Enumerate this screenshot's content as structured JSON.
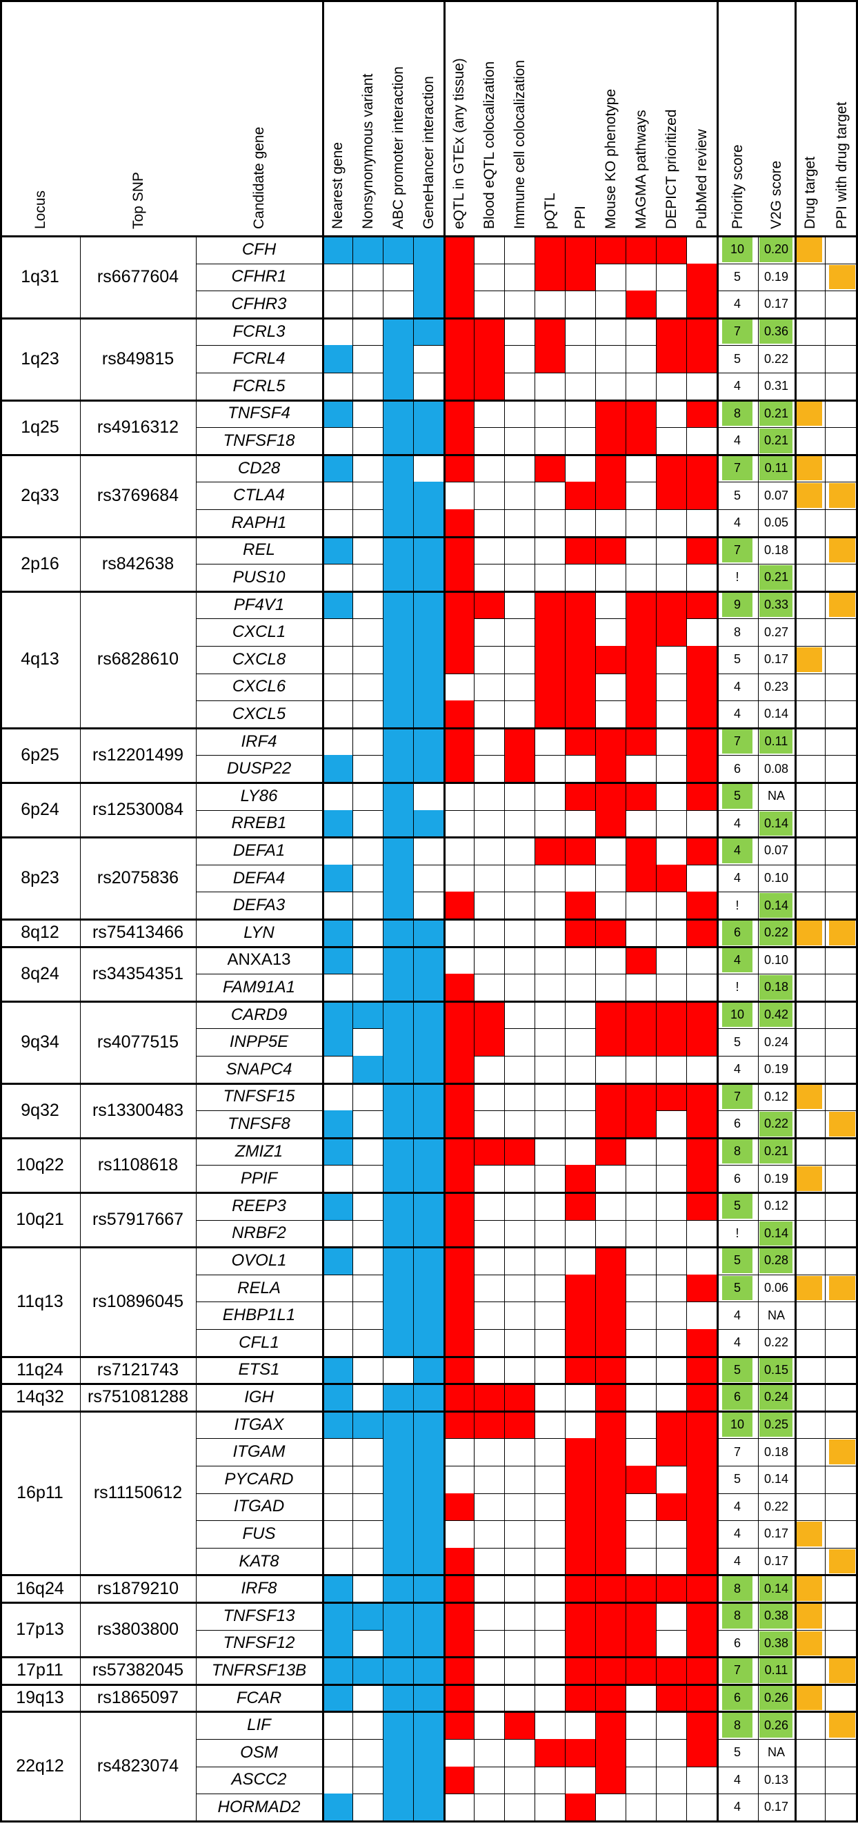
{
  "headers": {
    "locus": "Locus",
    "top_snp": "Top SNP",
    "candidate_gene": "Candidate gene",
    "evidence": [
      "Nearest gene",
      "Nonsynonymous variant",
      "ABC promoter interaction",
      "GeneHancer interaction",
      "eQTL in GTEx (any tissue)",
      "Blood eQTL colocalization",
      "Immune cell colocalization",
      "pQTL",
      "PPI",
      "Mouse KO phenotype",
      "MAGMA pathways",
      "DEPICT prioritized",
      "PubMed review"
    ],
    "priority_score": "Priority score",
    "v2g_score": "V2G score",
    "drug_target": "Drug target",
    "ppi_drug_target": "PPI with drug target"
  },
  "colors": {
    "blue": "#1aa6e6",
    "red": "#ff0000",
    "green": "#8ccf4d",
    "yellow": "#f7b21a"
  },
  "legend_codes": "Evidence strings: columns 1-4 blue (b) / 5-13 red (r); '.' = no evidence",
  "loci": [
    {
      "locus": "1q31",
      "snp": "rs6677604",
      "genes": [
        {
          "gene": "CFH",
          "ev": "bbbbr..rrrrr.",
          "p": "10",
          "pg": true,
          "v": "0.20",
          "vg": true,
          "dt": true,
          "pd": false
        },
        {
          "gene": "CFHR1",
          "ev": "...br..rr...r",
          "p": "5",
          "pg": false,
          "v": "0.19",
          "vg": false,
          "dt": false,
          "pd": true
        },
        {
          "gene": "CFHR3",
          "ev": "...br.....r.r",
          "p": "4",
          "pg": false,
          "v": "0.17",
          "vg": false,
          "dt": false,
          "pd": false
        }
      ]
    },
    {
      "locus": "1q23",
      "snp": "rs849815",
      "genes": [
        {
          "gene": "FCRL3",
          "ev": "..bbrr.r...rr",
          "p": "7",
          "pg": true,
          "v": "0.36",
          "vg": true,
          "dt": false,
          "pd": false
        },
        {
          "gene": "FCRL4",
          "ev": "b.b.rr.r...rr",
          "p": "5",
          "pg": false,
          "v": "0.22",
          "vg": false,
          "dt": false,
          "pd": false
        },
        {
          "gene": "FCRL5",
          "ev": "..b.rr.......",
          "p": "4",
          "pg": false,
          "v": "0.31",
          "vg": false,
          "dt": false,
          "pd": false
        }
      ]
    },
    {
      "locus": "1q25",
      "snp": "rs4916312",
      "genes": [
        {
          "gene": "TNFSF4",
          "ev": "b.bbr....rr.r",
          "p": "8",
          "pg": true,
          "v": "0.21",
          "vg": true,
          "dt": true,
          "pd": false
        },
        {
          "gene": "TNFSF18",
          "ev": "..bbr....rr..",
          "p": "4",
          "pg": false,
          "v": "0.21",
          "vg": true,
          "dt": false,
          "pd": false
        }
      ]
    },
    {
      "locus": "2q33",
      "snp": "rs3769684",
      "genes": [
        {
          "gene": "CD28",
          "ev": "b.b.r..r.r.rr",
          "p": "7",
          "pg": true,
          "v": "0.11",
          "vg": true,
          "dt": true,
          "pd": false
        },
        {
          "gene": "CTLA4",
          "ev": "..bb....rr.rr",
          "p": "5",
          "pg": false,
          "v": "0.07",
          "vg": false,
          "dt": true,
          "pd": true
        },
        {
          "gene": "RAPH1",
          "ev": "..bbr........",
          "p": "4",
          "pg": false,
          "v": "0.05",
          "vg": false,
          "dt": false,
          "pd": false
        }
      ]
    },
    {
      "locus": "2p16",
      "snp": "rs842638",
      "genes": [
        {
          "gene": "REL",
          "ev": "b.bbr...rr..r",
          "p": "7",
          "pg": true,
          "v": "0.18",
          "vg": false,
          "dt": false,
          "pd": true
        },
        {
          "gene": "PUS10",
          "ev": "..bbr........",
          "p": "!",
          "pg": false,
          "v": "0.21",
          "vg": true,
          "dt": false,
          "pd": false
        }
      ]
    },
    {
      "locus": "4q13",
      "snp": "rs6828610",
      "genes": [
        {
          "gene": "PF4V1",
          "ev": "b.bbrr.rr.rrr",
          "p": "9",
          "pg": true,
          "v": "0.33",
          "vg": true,
          "dt": false,
          "pd": true
        },
        {
          "gene": "CXCL1",
          "ev": "..bbr..rr.rr.",
          "p": "8",
          "pg": false,
          "v": "0.27",
          "vg": false,
          "dt": false,
          "pd": false
        },
        {
          "gene": "CXCL8",
          "ev": "..bbr..rrrr.r",
          "p": "5",
          "pg": false,
          "v": "0.17",
          "vg": false,
          "dt": true,
          "pd": false
        },
        {
          "gene": "CXCL6",
          "ev": "..bb...rr.r.r",
          "p": "4",
          "pg": false,
          "v": "0.23",
          "vg": false,
          "dt": false,
          "pd": false
        },
        {
          "gene": "CXCL5",
          "ev": "..bbr..rr.r.r",
          "p": "4",
          "pg": false,
          "v": "0.14",
          "vg": false,
          "dt": false,
          "pd": false
        }
      ]
    },
    {
      "locus": "6p25",
      "snp": "rs12201499",
      "genes": [
        {
          "gene": "IRF4",
          "ev": "..bbr.r.rrr.r",
          "p": "7",
          "pg": true,
          "v": "0.11",
          "vg": true,
          "dt": false,
          "pd": false
        },
        {
          "gene": "DUSP22",
          "ev": "b.bbr.r..r..r",
          "p": "6",
          "pg": false,
          "v": "0.08",
          "vg": false,
          "dt": false,
          "pd": false
        }
      ]
    },
    {
      "locus": "6p24",
      "snp": "rs12530084",
      "genes": [
        {
          "gene": "LY86",
          "ev": "..b.....rrr.r",
          "p": "5",
          "pg": true,
          "v": "NA",
          "vg": false,
          "dt": false,
          "pd": false
        },
        {
          "gene": "RREB1",
          "ev": "b.bb.....r...",
          "p": "4",
          "pg": false,
          "v": "0.14",
          "vg": true,
          "dt": false,
          "pd": false
        }
      ]
    },
    {
      "locus": "8p23",
      "snp": "rs2075836",
      "genes": [
        {
          "gene": "DEFA1",
          "ev": "..b....rr.r.r",
          "p": "4",
          "pg": true,
          "v": "0.07",
          "vg": false,
          "dt": false,
          "pd": false
        },
        {
          "gene": "DEFA4",
          "ev": "b.b.......rr.",
          "p": "4",
          "pg": false,
          "v": "0.10",
          "vg": false,
          "dt": false,
          "pd": false
        },
        {
          "gene": "DEFA3",
          "ev": "..b.r...r...r",
          "p": "!",
          "pg": false,
          "v": "0.14",
          "vg": true,
          "dt": false,
          "pd": false
        }
      ]
    },
    {
      "locus": "8q12",
      "snp": "rs75413466",
      "genes": [
        {
          "gene": "LYN",
          "ev": "b.bb....rr..r",
          "p": "6",
          "pg": true,
          "v": "0.22",
          "vg": true,
          "dt": true,
          "pd": true
        }
      ]
    },
    {
      "locus": "8q24",
      "snp": "rs34354351",
      "genes": [
        {
          "gene": "ANXA13",
          "plain": true,
          "ev": "b.bb......r..",
          "p": "4",
          "pg": true,
          "v": "0.10",
          "vg": false,
          "dt": false,
          "pd": false
        },
        {
          "gene": "FAM91A1",
          "ev": "..bbr........",
          "p": "!",
          "pg": false,
          "v": "0.18",
          "vg": true,
          "dt": false,
          "pd": false
        }
      ]
    },
    {
      "locus": "9q34",
      "snp": "rs4077515",
      "genes": [
        {
          "gene": "CARD9",
          "ev": "bbbbrr...rrrr",
          "p": "10",
          "pg": true,
          "v": "0.42",
          "vg": true,
          "dt": false,
          "pd": false
        },
        {
          "gene": "INPP5E",
          "ev": "b.bbrr...rrrr",
          "p": "5",
          "pg": false,
          "v": "0.24",
          "vg": false,
          "dt": false,
          "pd": false
        },
        {
          "gene": "SNAPC4",
          "ev": ".bbbr........",
          "p": "4",
          "pg": false,
          "v": "0.19",
          "vg": false,
          "dt": false,
          "pd": false
        }
      ]
    },
    {
      "locus": "9q32",
      "snp": "rs13300483",
      "genes": [
        {
          "gene": "TNFSF15",
          "ev": "..bbr....rrrr",
          "p": "7",
          "pg": true,
          "v": "0.12",
          "vg": false,
          "dt": true,
          "pd": false
        },
        {
          "gene": "TNFSF8",
          "ev": "b.bbr....rr.r",
          "p": "6",
          "pg": false,
          "v": "0.22",
          "vg": true,
          "dt": false,
          "pd": true
        }
      ]
    },
    {
      "locus": "10q22",
      "snp": "rs1108618",
      "genes": [
        {
          "gene": "ZMIZ1",
          "ev": "b.bbrrr..r..r",
          "p": "8",
          "pg": true,
          "v": "0.21",
          "vg": true,
          "dt": false,
          "pd": false
        },
        {
          "gene": "PPIF",
          "ev": "..bbr...r...r",
          "p": "6",
          "pg": false,
          "v": "0.19",
          "vg": false,
          "dt": true,
          "pd": false
        }
      ]
    },
    {
      "locus": "10q21",
      "snp": "rs57917667",
      "genes": [
        {
          "gene": "REEP3",
          "ev": "b.bbr...r...r",
          "p": "5",
          "pg": true,
          "v": "0.12",
          "vg": false,
          "dt": false,
          "pd": false
        },
        {
          "gene": "NRBF2",
          "ev": "..bbr........",
          "p": "!",
          "pg": false,
          "v": "0.14",
          "vg": true,
          "dt": false,
          "pd": false
        }
      ]
    },
    {
      "locus": "11q13",
      "snp": "rs10896045",
      "genes": [
        {
          "gene": "OVOL1",
          "ev": "b.bbr....r...",
          "p": "5",
          "pg": true,
          "v": "0.28",
          "vg": true,
          "dt": false,
          "pd": false
        },
        {
          "gene": "RELA",
          "ev": "..bbr...rr..r",
          "p": "5",
          "pg": true,
          "v": "0.06",
          "vg": false,
          "dt": true,
          "pd": true
        },
        {
          "gene": "EHBP1L1",
          "ev": "..bbr...rr...",
          "p": "4",
          "pg": false,
          "v": "NA",
          "vg": false,
          "dt": false,
          "pd": false
        },
        {
          "gene": "CFL1",
          "ev": "..bbr...rr..r",
          "p": "4",
          "pg": false,
          "v": "0.22",
          "vg": false,
          "dt": false,
          "pd": false
        }
      ]
    },
    {
      "locus": "11q24",
      "snp": "rs7121743",
      "genes": [
        {
          "gene": "ETS1",
          "ev": "b..br...rr..r",
          "p": "5",
          "pg": true,
          "v": "0.15",
          "vg": true,
          "dt": false,
          "pd": false
        }
      ]
    },
    {
      "locus": "14q32",
      "snp": "rs751081288",
      "genes": [
        {
          "gene": "IGH",
          "ev": "b.bbrrr..r..r",
          "p": "6",
          "pg": true,
          "v": "0.24",
          "vg": true,
          "dt": false,
          "pd": false
        }
      ]
    },
    {
      "locus": "16p11",
      "snp": "rs11150612",
      "genes": [
        {
          "gene": "ITGAX",
          "ev": "bbbbrrr..r.rr",
          "p": "10",
          "pg": true,
          "v": "0.25",
          "vg": true,
          "dt": false,
          "pd": false
        },
        {
          "gene": "ITGAM",
          "ev": "..bb....rr.rr",
          "p": "7",
          "pg": false,
          "v": "0.18",
          "vg": false,
          "dt": false,
          "pd": true
        },
        {
          "gene": "PYCARD",
          "ev": "..bb....rrr.r",
          "p": "5",
          "pg": false,
          "v": "0.14",
          "vg": false,
          "dt": false,
          "pd": false
        },
        {
          "gene": "ITGAD",
          "ev": "..bbr...rr.rr",
          "p": "4",
          "pg": false,
          "v": "0.22",
          "vg": false,
          "dt": false,
          "pd": false
        },
        {
          "gene": "FUS",
          "ev": "..bb....rr..r",
          "p": "4",
          "pg": false,
          "v": "0.17",
          "vg": false,
          "dt": true,
          "pd": false
        },
        {
          "gene": "KAT8",
          "ev": "..bbr...rr..r",
          "p": "4",
          "pg": false,
          "v": "0.17",
          "vg": false,
          "dt": false,
          "pd": true
        }
      ]
    },
    {
      "locus": "16q24",
      "snp": "rs1879210",
      "genes": [
        {
          "gene": "IRF8",
          "ev": "b.bbr...rrrrr",
          "p": "8",
          "pg": true,
          "v": "0.14",
          "vg": true,
          "dt": true,
          "pd": false
        }
      ]
    },
    {
      "locus": "17p13",
      "snp": "rs3803800",
      "genes": [
        {
          "gene": "TNFSF13",
          "ev": "bbbbr...rrr.r",
          "p": "8",
          "pg": true,
          "v": "0.38",
          "vg": true,
          "dt": true,
          "pd": false
        },
        {
          "gene": "TNFSF12",
          "ev": "b.bbr...rrr.r",
          "p": "6",
          "pg": false,
          "v": "0.38",
          "vg": true,
          "dt": true,
          "pd": false
        }
      ]
    },
    {
      "locus": "17p11",
      "snp": "rs57382045",
      "genes": [
        {
          "gene": "TNFRSF13B",
          "ev": "bbbbr...rrrrr",
          "p": "7",
          "pg": true,
          "v": "0.11",
          "vg": true,
          "dt": false,
          "pd": true
        }
      ]
    },
    {
      "locus": "19q13",
      "snp": "rs1865097",
      "genes": [
        {
          "gene": "FCAR",
          "ev": "b.bbr...rr.rr",
          "p": "6",
          "pg": true,
          "v": "0.26",
          "vg": true,
          "dt": true,
          "pd": false
        }
      ]
    },
    {
      "locus": "22q12",
      "snp": "rs4823074",
      "genes": [
        {
          "gene": "LIF",
          "ev": "..bbr.r..r..r",
          "p": "8",
          "pg": true,
          "v": "0.26",
          "vg": true,
          "dt": false,
          "pd": true
        },
        {
          "gene": "OSM",
          "ev": "..bb...rrr..r",
          "p": "5",
          "pg": false,
          "v": "NA",
          "vg": false,
          "dt": false,
          "pd": false
        },
        {
          "gene": "ASCC2",
          "ev": "..bbr....r...",
          "p": "4",
          "pg": false,
          "v": "0.13",
          "vg": false,
          "dt": false,
          "pd": false
        },
        {
          "gene": "HORMAD2",
          "ev": "b.bb....r....",
          "p": "4",
          "pg": false,
          "v": "0.17",
          "vg": false,
          "dt": false,
          "pd": false
        }
      ]
    }
  ]
}
